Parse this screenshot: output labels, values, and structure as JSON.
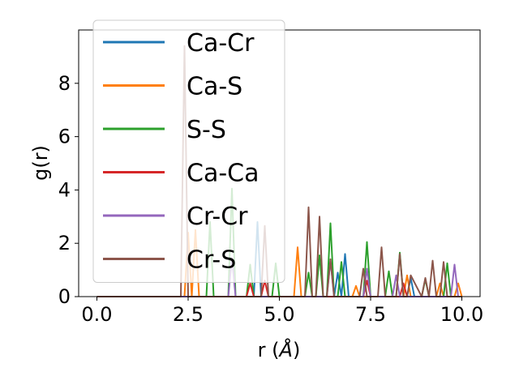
{
  "chart_data": {
    "type": "line",
    "title": "",
    "xlabel": "r (Å)",
    "xlabel_prefix": "r (",
    "xlabel_unit": "Å",
    "xlabel_suffix": ")",
    "ylabel": "g(r)",
    "xlim": [
      -0.5,
      10.5
    ],
    "ylim": [
      0,
      10
    ],
    "xticks": [
      0.0,
      2.5,
      5.0,
      7.5,
      10.0
    ],
    "xtick_labels": [
      "0.0",
      "2.5",
      "5.0",
      "7.5",
      "10.0"
    ],
    "yticks": [
      0,
      2,
      4,
      6,
      8
    ],
    "ytick_labels": [
      "0",
      "2",
      "4",
      "6",
      "8"
    ],
    "grid": false,
    "legend_position": "top-left",
    "series": [
      {
        "name": "Ca-Cr",
        "color": "#1f77b4",
        "x": [
          0,
          4.3,
          4.4,
          4.5,
          6.5,
          6.6,
          6.7,
          6.8,
          6.9,
          8.5,
          8.6,
          8.7,
          8.8,
          10.0
        ],
        "y": [
          0,
          0,
          2.8,
          0,
          0,
          0.9,
          0,
          1.6,
          0,
          0,
          0.7,
          0,
          0,
          0
        ]
      },
      {
        "name": "Ca-S",
        "color": "#ff7f0e",
        "x": [
          0,
          2.4,
          2.5,
          2.6,
          2.7,
          2.8,
          5.4,
          5.5,
          5.6,
          7.0,
          7.1,
          7.2,
          8.4,
          8.5,
          8.6,
          9.3,
          9.4,
          9.5,
          9.8,
          9.9,
          10.0
        ],
        "y": [
          0,
          0,
          2.4,
          0,
          2.5,
          0,
          0,
          1.85,
          0,
          0,
          0.4,
          0,
          0,
          0.8,
          0,
          0,
          0.5,
          0,
          0,
          0.5,
          0
        ]
      },
      {
        "name": "S-S",
        "color": "#2ca02c",
        "x": [
          0,
          3.0,
          3.1,
          3.2,
          3.6,
          3.7,
          3.8,
          4.1,
          4.2,
          4.3,
          4.8,
          4.9,
          5.0,
          5.7,
          5.8,
          5.9,
          6.0,
          6.1,
          6.2,
          6.3,
          6.4,
          6.5,
          6.6,
          6.7,
          6.8,
          7.3,
          7.4,
          7.5,
          7.6,
          7.9,
          8.0,
          8.1,
          8.2,
          8.3,
          8.4,
          8.5,
          8.9,
          9.0,
          9.1,
          9.5,
          9.6,
          9.7,
          10.0
        ],
        "y": [
          0,
          0,
          2.8,
          0,
          0,
          4.05,
          0,
          0,
          1.2,
          0,
          0,
          1.25,
          0,
          0,
          0.9,
          0,
          0,
          1.55,
          0,
          0,
          2.75,
          0,
          0,
          1.3,
          0,
          0,
          2.05,
          0,
          0,
          0,
          0.95,
          0,
          0,
          1.65,
          0,
          0,
          0,
          0.65,
          0,
          0,
          1.25,
          0,
          0
        ]
      },
      {
        "name": "Ca-Ca",
        "color": "#d62728",
        "x": [
          0,
          4.1,
          4.2,
          4.3,
          4.5,
          4.6,
          4.7,
          7.3,
          7.4,
          7.5,
          8.3,
          8.4,
          8.5,
          10.0
        ],
        "y": [
          0,
          0,
          0.5,
          0,
          0,
          0.6,
          0,
          0,
          0.6,
          0,
          0,
          0.5,
          0,
          0
        ]
      },
      {
        "name": "Cr-Cr",
        "color": "#9467bd",
        "x": [
          0,
          3.6,
          3.7,
          3.8,
          6.3,
          6.4,
          6.5,
          7.3,
          7.4,
          7.5,
          8.1,
          8.2,
          8.3,
          9.7,
          9.8,
          9.9,
          10.0
        ],
        "y": [
          0,
          0,
          1.45,
          0,
          0,
          1.35,
          0,
          0,
          1.05,
          0,
          0,
          0.8,
          0,
          0,
          1.2,
          0,
          0
        ]
      },
      {
        "name": "Cr-S",
        "color": "#8c564b",
        "x": [
          0,
          2.3,
          2.4,
          2.5,
          4.5,
          4.6,
          4.7,
          5.7,
          5.8,
          5.9,
          6.0,
          6.1,
          6.2,
          6.3,
          6.4,
          6.5,
          7.2,
          7.3,
          7.4,
          7.5,
          7.7,
          7.8,
          7.9,
          8.2,
          8.3,
          8.4,
          8.5,
          8.6,
          8.9,
          9.0,
          9.1,
          9.2,
          9.3,
          9.4,
          9.5,
          9.6,
          10.0
        ],
        "y": [
          0,
          0,
          9.4,
          0,
          0,
          2.65,
          0,
          0,
          3.35,
          0,
          0,
          3.0,
          0,
          0,
          1.4,
          0,
          0,
          1.05,
          0,
          0,
          0,
          1.85,
          0,
          0,
          1.6,
          0,
          0,
          0.8,
          0,
          0.7,
          0,
          1.35,
          0,
          0,
          1.3,
          0,
          0
        ]
      }
    ]
  }
}
